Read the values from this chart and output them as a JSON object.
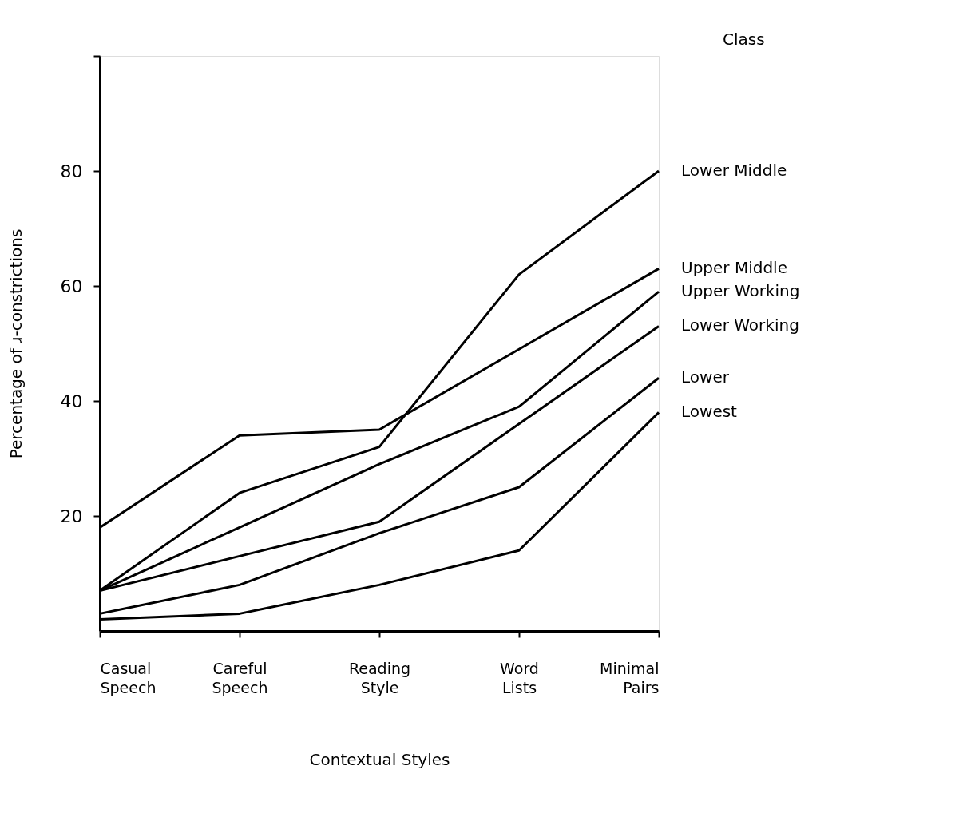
{
  "chart_data": {
    "type": "line",
    "xlabel": "Contextual Styles",
    "ylabel": "Percentage of ɹ-constrictions",
    "legend_title": "Class",
    "categories": [
      "Casual Speech",
      "Careful Speech",
      "Reading Style",
      "Word Lists",
      "Minimal Pairs"
    ],
    "series": [
      {
        "name": "Lower Middle",
        "color": "#000000",
        "values": [
          7,
          24,
          32,
          62,
          80
        ]
      },
      {
        "name": "Upper Middle",
        "color": "#000000",
        "values": [
          18,
          34,
          35,
          49,
          63
        ]
      },
      {
        "name": "Upper Working",
        "color": "#000000",
        "values": [
          7,
          18,
          29,
          39,
          59
        ]
      },
      {
        "name": "Lower Working",
        "color": "#000000",
        "values": [
          7,
          13,
          19,
          36,
          53
        ]
      },
      {
        "name": "Lower",
        "color": "#000000",
        "values": [
          3,
          8,
          17,
          25,
          44
        ]
      },
      {
        "name": "Lowest",
        "color": "#000000",
        "values": [
          2,
          3,
          8,
          14,
          38
        ]
      }
    ],
    "ylim": [
      0,
      100
    ],
    "yticks": [
      20,
      40,
      60,
      80,
      {
        "value": 100,
        "label": null
      }
    ],
    "grid": false,
    "legend": false,
    "marker": "none",
    "line_style": "solid"
  }
}
